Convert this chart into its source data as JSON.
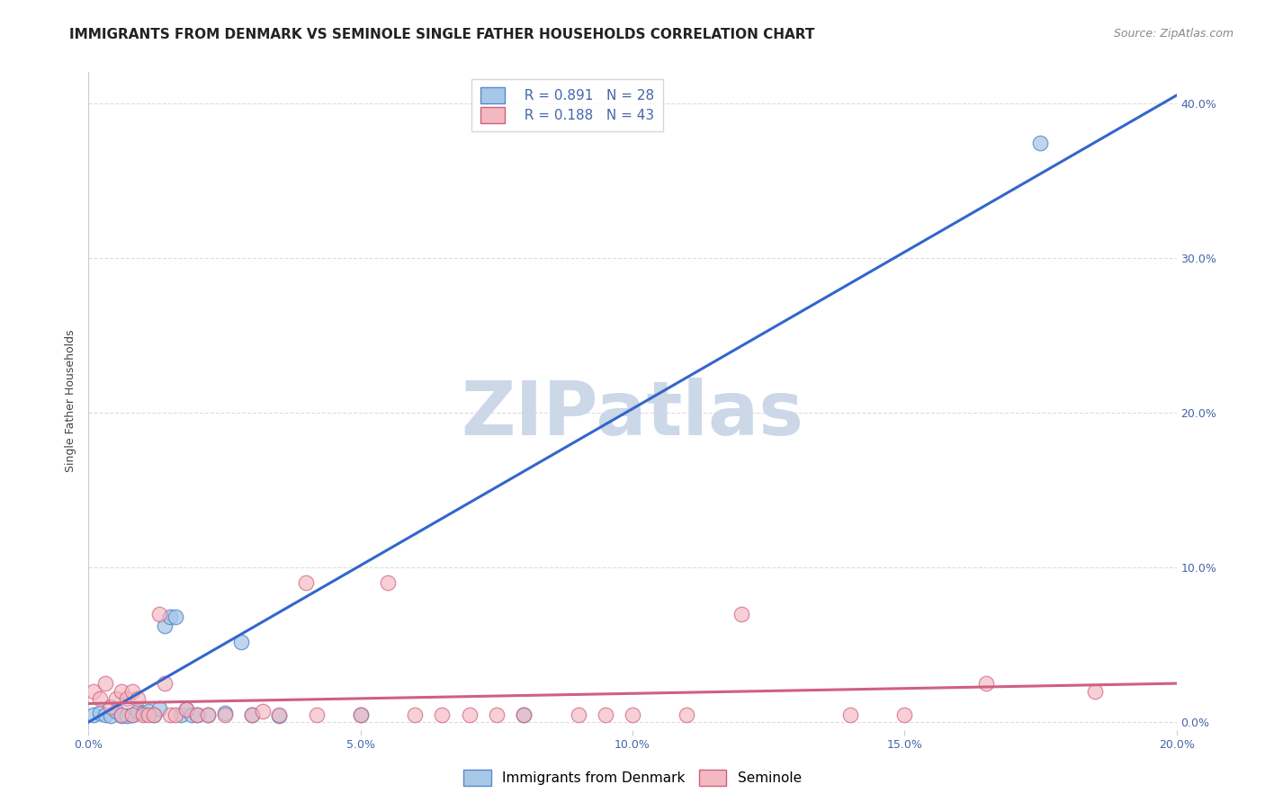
{
  "title": "IMMIGRANTS FROM DENMARK VS SEMINOLE SINGLE FATHER HOUSEHOLDS CORRELATION CHART",
  "source": "Source: ZipAtlas.com",
  "ylabel": "Single Father Households",
  "xlim": [
    0.0,
    0.2
  ],
  "ylim": [
    -0.005,
    0.42
  ],
  "xtick_labels": [
    "0.0%",
    "5.0%",
    "10.0%",
    "15.0%",
    "20.0%"
  ],
  "xtick_vals": [
    0.0,
    0.05,
    0.1,
    0.15,
    0.2
  ],
  "ytick_labels_right": [
    "0.0%",
    "10.0%",
    "20.0%",
    "30.0%",
    "40.0%"
  ],
  "ytick_vals_right": [
    0.0,
    0.1,
    0.2,
    0.3,
    0.4
  ],
  "legend_label_blue": "Immigrants from Denmark",
  "legend_label_pink": "Seminole",
  "legend_R_blue": "R = 0.891",
  "legend_N_blue": "N = 28",
  "legend_R_pink": "R = 0.188",
  "legend_N_pink": "N = 43",
  "blue_scatter_color": "#a8c8e8",
  "blue_edge_color": "#5588cc",
  "blue_line_color": "#3366cc",
  "pink_scatter_color": "#f4b8c0",
  "pink_edge_color": "#d06080",
  "pink_line_color": "#d06080",
  "watermark": "ZIPatlas",
  "watermark_color": "#ccd8e8",
  "blue_scatter_x": [
    0.001,
    0.002,
    0.003,
    0.004,
    0.005,
    0.006,
    0.007,
    0.008,
    0.009,
    0.01,
    0.011,
    0.012,
    0.013,
    0.014,
    0.015,
    0.016,
    0.017,
    0.018,
    0.019,
    0.02,
    0.022,
    0.025,
    0.028,
    0.03,
    0.035,
    0.05,
    0.08,
    0.175
  ],
  "blue_scatter_y": [
    0.005,
    0.006,
    0.005,
    0.004,
    0.007,
    0.004,
    0.004,
    0.005,
    0.007,
    0.006,
    0.007,
    0.005,
    0.009,
    0.062,
    0.068,
    0.068,
    0.005,
    0.008,
    0.005,
    0.005,
    0.005,
    0.006,
    0.052,
    0.005,
    0.004,
    0.005,
    0.005,
    0.374
  ],
  "pink_scatter_x": [
    0.001,
    0.002,
    0.003,
    0.004,
    0.005,
    0.006,
    0.006,
    0.007,
    0.008,
    0.008,
    0.009,
    0.01,
    0.011,
    0.012,
    0.013,
    0.014,
    0.015,
    0.016,
    0.018,
    0.02,
    0.022,
    0.025,
    0.03,
    0.032,
    0.035,
    0.04,
    0.042,
    0.05,
    0.055,
    0.06,
    0.065,
    0.07,
    0.075,
    0.08,
    0.09,
    0.095,
    0.1,
    0.11,
    0.12,
    0.14,
    0.15,
    0.165,
    0.185
  ],
  "pink_scatter_y": [
    0.02,
    0.015,
    0.025,
    0.01,
    0.015,
    0.02,
    0.005,
    0.015,
    0.02,
    0.005,
    0.015,
    0.005,
    0.005,
    0.005,
    0.07,
    0.025,
    0.005,
    0.005,
    0.008,
    0.005,
    0.005,
    0.005,
    0.005,
    0.007,
    0.005,
    0.09,
    0.005,
    0.005,
    0.09,
    0.005,
    0.005,
    0.005,
    0.005,
    0.005,
    0.005,
    0.005,
    0.005,
    0.005,
    0.07,
    0.005,
    0.005,
    0.025,
    0.02
  ],
  "blue_line_x0": 0.0,
  "blue_line_y0": 0.0,
  "blue_line_x1": 0.2,
  "blue_line_y1": 0.405,
  "pink_line_x0": 0.0,
  "pink_line_y0": 0.012,
  "pink_line_x1": 0.2,
  "pink_line_y1": 0.025,
  "grid_color": "#dddddd",
  "background_color": "#ffffff",
  "title_fontsize": 11,
  "axis_label_fontsize": 9,
  "tick_fontsize": 9,
  "tick_color": "#4466aa",
  "legend_fontsize": 11
}
